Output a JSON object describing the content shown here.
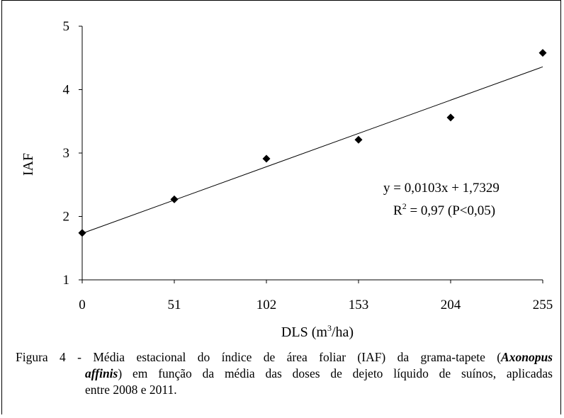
{
  "chart_data": {
    "type": "scatter",
    "xlabel": "DLS",
    "xunit_base": "m",
    "xunit_exp": "3",
    "xunit_rest": "/ha",
    "ylabel": "IAF",
    "x_ticks": [
      "0",
      "51",
      "102",
      "153",
      "204",
      "255"
    ],
    "y_ticks": [
      "1",
      "2",
      "3",
      "4",
      "5"
    ],
    "xlim": [
      0,
      255
    ],
    "ylim": [
      1,
      5
    ],
    "points": [
      {
        "x": 0,
        "y": 1.74
      },
      {
        "x": 51,
        "y": 2.27
      },
      {
        "x": 102,
        "y": 2.91
      },
      {
        "x": 153,
        "y": 3.21
      },
      {
        "x": 204,
        "y": 3.56
      },
      {
        "x": 255,
        "y": 4.58
      }
    ],
    "trendline": {
      "slope": 0.0103,
      "intercept": 1.7329
    },
    "equation": "y = 0,0103x + 1,7329",
    "r2_prefix": "R",
    "r2_exp": "2",
    "r2_rest": " = 0,97 (P<0,05)",
    "grid": false
  },
  "caption": {
    "lead": "Figura 4 - Média estacional do índice de área foliar (IAF) da grama-tapete (",
    "species_genus": "Axonopus",
    "species_epithet": "affinis",
    "line2_rest": ") em função da média das doses de dejeto líquido de suínos, aplicadas",
    "line3": "entre 2008 e 2011."
  }
}
